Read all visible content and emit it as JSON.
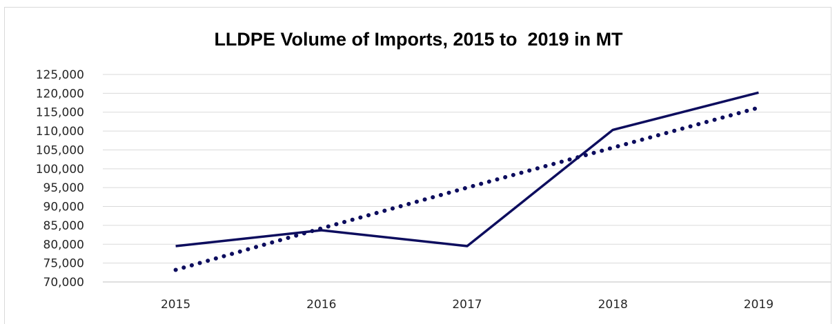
{
  "chart_data": {
    "type": "line",
    "title": "LLDPE Volume of Imports, 2015 to  2019 in MT",
    "xlabel": "",
    "ylabel": "",
    "categories": [
      "2015",
      "2016",
      "2017",
      "2018",
      "2019"
    ],
    "series": [
      {
        "style": "solid",
        "values": [
          79500,
          83700,
          79500,
          110300,
          120200
        ]
      },
      {
        "style": "dotted-trendline",
        "values": [
          73200,
          84200,
          95000,
          105600,
          116200
        ]
      }
    ],
    "ylim": [
      70000,
      125000
    ],
    "yticks": [
      70000,
      75000,
      80000,
      85000,
      90000,
      95000,
      100000,
      105000,
      110000,
      115000,
      120000,
      125000
    ],
    "ytick_labels": [
      "70,000",
      "75,000",
      "80,000",
      "85,000",
      "90,000",
      "95,000",
      "100,000",
      "105,000",
      "110,000",
      "115,000",
      "120,000",
      "125,000"
    ],
    "grid": true,
    "legend": "none",
    "colors": {
      "line": "#0d0d5e",
      "grid": "#d9d9d9",
      "text": "#262626"
    }
  }
}
